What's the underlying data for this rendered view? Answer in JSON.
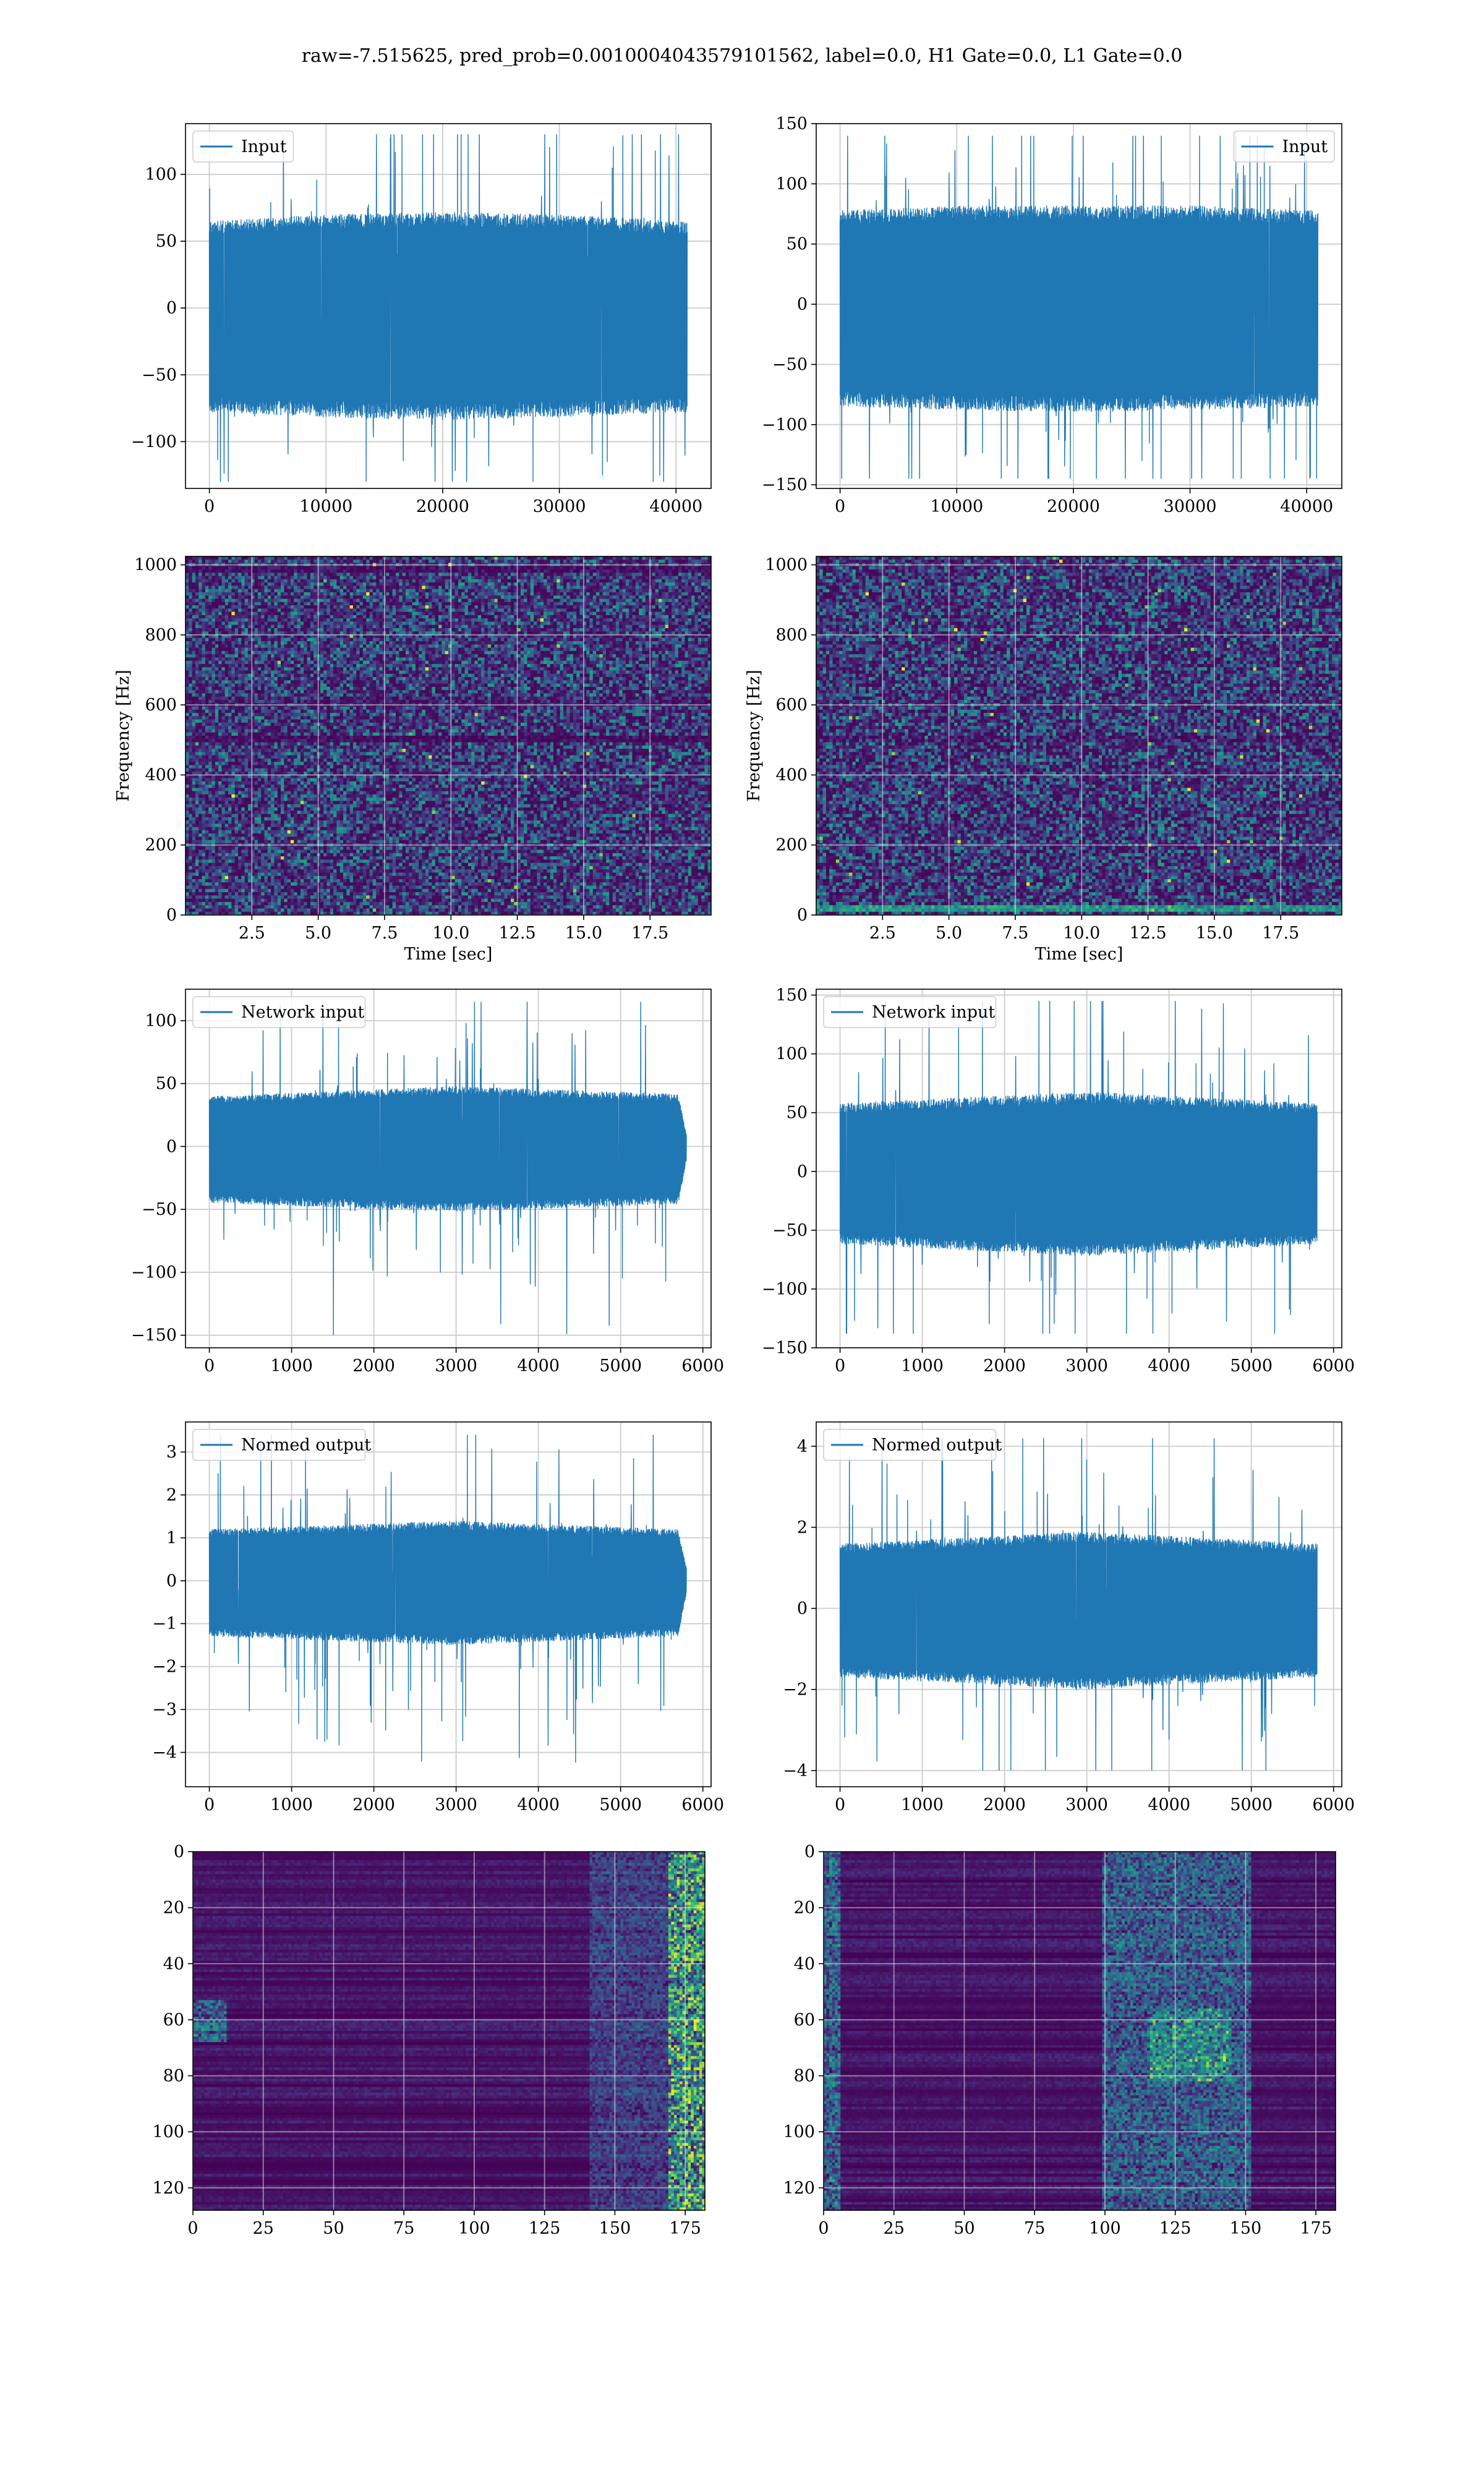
{
  "figure": {
    "suptitle": "raw=-7.515625, pred_prob=0.0010004043579101562, label=0.0, H1 Gate=0.0, L1 Gate=0.0"
  },
  "chart_data": [
    {
      "id": "input-h1",
      "type": "line",
      "title": "",
      "legend": [
        "Input"
      ],
      "legend_loc": "upper-left",
      "series": [
        {
          "name": "Input",
          "color": "#1f77b4",
          "n": 40960,
          "envelope": [
            [
              0,
              65,
              -78
            ],
            [
              10000,
              70,
              -82
            ],
            [
              20000,
              72,
              -84
            ],
            [
              30000,
              70,
              -82
            ],
            [
              40960,
              65,
              -78
            ]
          ],
          "max": 130,
          "min": -130
        }
      ],
      "xlim": [
        -2048,
        43008
      ],
      "ylim": [
        -135,
        138
      ],
      "xticks": [
        0,
        10000,
        20000,
        30000,
        40000
      ],
      "yticks": [
        -100,
        -50,
        0,
        50,
        100
      ],
      "xlabel": "",
      "ylabel": "",
      "grid": true
    },
    {
      "id": "input-l1",
      "type": "line",
      "title": "",
      "legend": [
        "Input"
      ],
      "legend_loc": "upper-right",
      "series": [
        {
          "name": "Input",
          "color": "#1f77b4",
          "n": 40960,
          "envelope": [
            [
              0,
              78,
              -85
            ],
            [
              10000,
              82,
              -88
            ],
            [
              20000,
              82,
              -90
            ],
            [
              30000,
              82,
              -88
            ],
            [
              40960,
              78,
              -85
            ]
          ],
          "max": 140,
          "min": -145
        }
      ],
      "xlim": [
        -2048,
        43008
      ],
      "ylim": [
        -153,
        150
      ],
      "xticks": [
        0,
        10000,
        20000,
        30000,
        40000
      ],
      "yticks": [
        -150,
        -100,
        -50,
        0,
        50,
        100,
        150
      ],
      "xlabel": "",
      "ylabel": "",
      "grid": true
    },
    {
      "id": "spectrogram-h1",
      "type": "heatmap",
      "title": "",
      "colormap": "viridis",
      "description_bands": [
        {
          "freq": 500,
          "strength": "dark"
        },
        {
          "freq": 990,
          "strength": "dark"
        },
        {
          "freq": 610,
          "strength": "faint"
        }
      ],
      "xlim": [
        0,
        19.8
      ],
      "ylim": [
        0,
        1024
      ],
      "xticks": [
        2.5,
        5.0,
        7.5,
        10.0,
        12.5,
        15.0,
        17.5
      ],
      "xticklabels": [
        "2.5",
        "5.0",
        "7.5",
        "10.0",
        "12.5",
        "15.0",
        "17.5"
      ],
      "yticks": [
        0,
        200,
        400,
        600,
        800,
        1000
      ],
      "xlabel": "Time [sec]",
      "ylabel": "Frequency [Hz]",
      "grid": true
    },
    {
      "id": "spectrogram-l1",
      "type": "heatmap",
      "title": "",
      "colormap": "viridis",
      "description_bands": [
        {
          "freq": 20,
          "strength": "bright"
        },
        {
          "freq": 500,
          "strength": "faint"
        }
      ],
      "xlim": [
        0,
        19.8
      ],
      "ylim": [
        0,
        1024
      ],
      "xticks": [
        2.5,
        5.0,
        7.5,
        10.0,
        12.5,
        15.0,
        17.5
      ],
      "xticklabels": [
        "2.5",
        "5.0",
        "7.5",
        "10.0",
        "12.5",
        "15.0",
        "17.5"
      ],
      "yticks": [
        0,
        200,
        400,
        600,
        800,
        1000
      ],
      "xlabel": "Time [sec]",
      "ylabel": "Frequency [Hz]",
      "grid": true
    },
    {
      "id": "network-input-h1",
      "type": "line",
      "title": "",
      "legend": [
        "Network input"
      ],
      "legend_loc": "upper-left",
      "series": [
        {
          "name": "Network input",
          "color": "#1f77b4",
          "n": 5800,
          "envelope": [
            [
              0,
              40,
              -45
            ],
            [
              3000,
              48,
              -52
            ],
            [
              5700,
              42,
              -46
            ],
            [
              5800,
              10,
              -12
            ]
          ],
          "max": 115,
          "min": -150
        }
      ],
      "xlim": [
        -290,
        6100
      ],
      "ylim": [
        -160,
        125
      ],
      "xticks": [
        0,
        1000,
        2000,
        3000,
        4000,
        5000,
        6000
      ],
      "yticks": [
        -150,
        -100,
        -50,
        0,
        50,
        100
      ],
      "xlabel": "",
      "ylabel": "",
      "grid": true
    },
    {
      "id": "network-input-l1",
      "type": "line",
      "title": "",
      "legend": [
        "Network input"
      ],
      "legend_loc": "upper-left",
      "series": [
        {
          "name": "Network input",
          "color": "#1f77b4",
          "n": 5800,
          "envelope": [
            [
              0,
              58,
              -62
            ],
            [
              3000,
              68,
              -72
            ],
            [
              5800,
              58,
              -62
            ]
          ],
          "max": 145,
          "min": -138
        }
      ],
      "xlim": [
        -290,
        6100
      ],
      "ylim": [
        -150,
        155
      ],
      "xticks": [
        0,
        1000,
        2000,
        3000,
        4000,
        5000,
        6000
      ],
      "yticks": [
        -150,
        -100,
        -50,
        0,
        50,
        100,
        150
      ],
      "xlabel": "",
      "ylabel": "",
      "grid": true
    },
    {
      "id": "normed-output-h1",
      "type": "line",
      "title": "",
      "legend": [
        "Normed output"
      ],
      "legend_loc": "upper-left",
      "series": [
        {
          "name": "Normed output",
          "color": "#1f77b4",
          "n": 5800,
          "envelope": [
            [
              0,
              1.2,
              -1.3
            ],
            [
              3000,
              1.4,
              -1.5
            ],
            [
              5700,
              1.2,
              -1.3
            ],
            [
              5800,
              0.3,
              -0.3
            ]
          ],
          "max": 3.4,
          "min": -4.4
        }
      ],
      "xlim": [
        -290,
        6100
      ],
      "ylim": [
        -4.8,
        3.7
      ],
      "xticks": [
        0,
        1000,
        2000,
        3000,
        4000,
        5000,
        6000
      ],
      "yticks": [
        -4,
        -3,
        -2,
        -1,
        0,
        1,
        2,
        3
      ],
      "xlabel": "",
      "ylabel": "",
      "grid": true
    },
    {
      "id": "normed-output-l1",
      "type": "line",
      "title": "",
      "legend": [
        "Normed output"
      ],
      "legend_loc": "upper-left",
      "series": [
        {
          "name": "Normed output",
          "color": "#1f77b4",
          "n": 5800,
          "envelope": [
            [
              0,
              1.6,
              -1.7
            ],
            [
              3000,
              1.9,
              -2.0
            ],
            [
              5800,
              1.6,
              -1.7
            ]
          ],
          "max": 4.2,
          "min": -4.0
        }
      ],
      "xlim": [
        -290,
        6100
      ],
      "ylim": [
        -4.4,
        4.6
      ],
      "xticks": [
        0,
        1000,
        2000,
        3000,
        4000,
        5000,
        6000
      ],
      "yticks": [
        -4,
        -2,
        0,
        2,
        4
      ],
      "xlabel": "",
      "ylabel": "",
      "grid": true
    },
    {
      "id": "feature-map-h1",
      "type": "heatmap",
      "title": "",
      "colormap": "viridis",
      "shape": [
        128,
        182
      ],
      "description": "mostly dark purple with horizontal streaks; bright yellow-green activity concentrated near x=170-182 and a few spots near x=0-10 at rows 55-65",
      "xlim": [
        0,
        182
      ],
      "ylim": [
        128,
        0
      ],
      "xticks": [
        0,
        25,
        50,
        75,
        100,
        125,
        150,
        175
      ],
      "yticks": [
        0,
        20,
        40,
        60,
        80,
        100,
        120
      ],
      "xlabel": "",
      "ylabel": "",
      "grid": true
    },
    {
      "id": "feature-map-l1",
      "type": "heatmap",
      "title": "",
      "colormap": "viridis",
      "shape": [
        128,
        182
      ],
      "description": "dark purple with horizontal streaks; teal/green activity between x=100 and x=150, brighter near x=120-140 and rows 55-80",
      "xlim": [
        0,
        182
      ],
      "ylim": [
        128,
        0
      ],
      "xticks": [
        0,
        25,
        50,
        75,
        100,
        125,
        150,
        175
      ],
      "yticks": [
        0,
        20,
        40,
        60,
        80,
        100,
        120
      ],
      "xlabel": "",
      "ylabel": "",
      "grid": true
    }
  ]
}
